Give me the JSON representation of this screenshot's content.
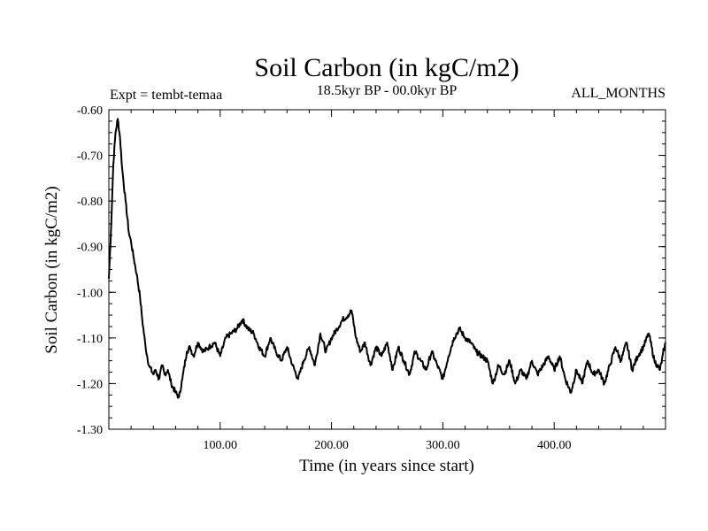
{
  "chart_data": {
    "type": "line",
    "title": "Soil Carbon (in kgC/m2)",
    "subtitle_left": "Expt = tembt-temaa",
    "subtitle_center": "18.5kyr BP - 00.0kyr BP",
    "subtitle_right": "ALL_MONTHS",
    "xlabel": "Time (in years since start)",
    "ylabel": "Soil Carbon (in kgC/m2)",
    "xlim": [
      0,
      500
    ],
    "ylim": [
      -1.3,
      -0.6
    ],
    "x_ticks": [
      100,
      200,
      300,
      400
    ],
    "x_tick_labels": [
      "100.00",
      "200.00",
      "300.00",
      "400.00"
    ],
    "y_ticks": [
      -0.6,
      -0.7,
      -0.8,
      -0.9,
      -1.0,
      -1.1,
      -1.2,
      -1.3
    ],
    "y_tick_labels": [
      "-0.60",
      "-0.70",
      "-0.80",
      "-0.90",
      "-1.00",
      "-1.10",
      "-1.20",
      "-1.30"
    ],
    "series": [
      {
        "name": "Soil Carbon",
        "color": "#000000",
        "x": [
          0,
          2,
          4,
          6,
          8,
          10,
          12,
          15,
          18,
          20,
          22,
          25,
          28,
          30,
          33,
          36,
          40,
          42,
          45,
          48,
          50,
          53,
          56,
          60,
          63,
          66,
          70,
          73,
          76,
          80,
          85,
          90,
          95,
          100,
          105,
          110,
          115,
          120,
          125,
          130,
          135,
          140,
          145,
          150,
          155,
          160,
          165,
          170,
          175,
          180,
          185,
          190,
          195,
          200,
          205,
          210,
          215,
          218,
          222,
          226,
          230,
          235,
          240,
          245,
          250,
          255,
          260,
          265,
          270,
          275,
          280,
          285,
          290,
          295,
          300,
          305,
          310,
          315,
          320,
          325,
          330,
          335,
          340,
          345,
          350,
          355,
          360,
          365,
          370,
          375,
          380,
          385,
          390,
          395,
          400,
          405,
          410,
          415,
          420,
          425,
          430,
          435,
          440,
          445,
          450,
          455,
          460,
          465,
          470,
          475,
          480,
          485,
          490,
          495,
          500
        ],
        "values": [
          -0.97,
          -0.86,
          -0.72,
          -0.65,
          -0.62,
          -0.66,
          -0.73,
          -0.8,
          -0.87,
          -0.89,
          -0.92,
          -0.96,
          -1.01,
          -1.06,
          -1.12,
          -1.16,
          -1.18,
          -1.17,
          -1.19,
          -1.16,
          -1.18,
          -1.17,
          -1.2,
          -1.22,
          -1.23,
          -1.19,
          -1.13,
          -1.12,
          -1.14,
          -1.11,
          -1.13,
          -1.12,
          -1.11,
          -1.14,
          -1.1,
          -1.09,
          -1.08,
          -1.06,
          -1.08,
          -1.09,
          -1.12,
          -1.14,
          -1.1,
          -1.13,
          -1.15,
          -1.12,
          -1.16,
          -1.19,
          -1.15,
          -1.12,
          -1.16,
          -1.09,
          -1.13,
          -1.1,
          -1.08,
          -1.06,
          -1.05,
          -1.04,
          -1.1,
          -1.13,
          -1.11,
          -1.16,
          -1.12,
          -1.14,
          -1.11,
          -1.17,
          -1.12,
          -1.15,
          -1.18,
          -1.13,
          -1.15,
          -1.17,
          -1.13,
          -1.16,
          -1.19,
          -1.14,
          -1.1,
          -1.08,
          -1.1,
          -1.11,
          -1.13,
          -1.14,
          -1.15,
          -1.2,
          -1.16,
          -1.18,
          -1.15,
          -1.2,
          -1.17,
          -1.19,
          -1.15,
          -1.18,
          -1.16,
          -1.14,
          -1.17,
          -1.14,
          -1.19,
          -1.22,
          -1.17,
          -1.2,
          -1.15,
          -1.18,
          -1.17,
          -1.2,
          -1.16,
          -1.12,
          -1.15,
          -1.11,
          -1.17,
          -1.14,
          -1.12,
          -1.09,
          -1.15,
          -1.17,
          -1.11
        ]
      }
    ]
  }
}
